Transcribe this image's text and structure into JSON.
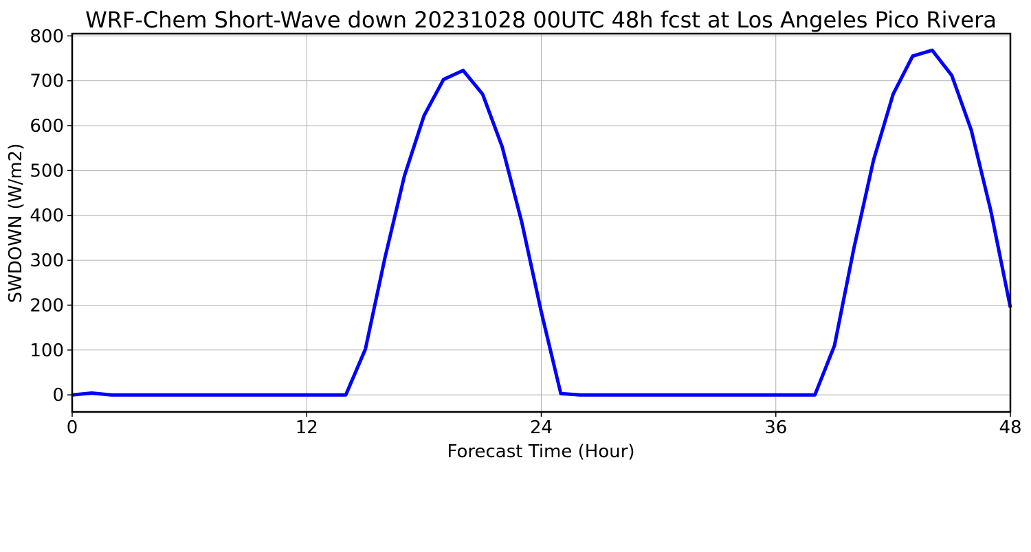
{
  "chart_data": {
    "type": "line",
    "title": "WRF-Chem Short-Wave down  20231028 00UTC 48h fcst at Los Angeles Pico Rivera",
    "xlabel": "Forecast Time (Hour)",
    "ylabel": "SWDOWN  (W/m2)",
    "xlim": [
      0,
      48
    ],
    "ylim": [
      -38,
      805
    ],
    "xticks": [
      0,
      12,
      24,
      36,
      48
    ],
    "yticks": [
      0,
      100,
      200,
      300,
      400,
      500,
      600,
      700,
      800
    ],
    "grid": true,
    "legend": "none",
    "series": [
      {
        "color": "#0000ff",
        "x": [
          0,
          1,
          2,
          3,
          4,
          5,
          6,
          7,
          8,
          9,
          10,
          11,
          12,
          13,
          14,
          15,
          16,
          17,
          18,
          19,
          20,
          21,
          22,
          23,
          24,
          25,
          26,
          27,
          28,
          29,
          30,
          31,
          32,
          33,
          34,
          35,
          36,
          37,
          38,
          39,
          40,
          41,
          42,
          43,
          44,
          45,
          46,
          47,
          48
        ],
        "y": [
          0,
          4,
          0,
          0,
          0,
          0,
          0,
          0,
          0,
          0,
          0,
          0,
          0,
          0,
          0,
          102,
          305,
          488,
          622,
          703,
          723,
          670,
          553,
          385,
          185,
          3,
          0,
          0,
          0,
          0,
          0,
          0,
          0,
          0,
          0,
          0,
          0,
          0,
          0,
          110,
          328,
          523,
          670,
          755,
          768,
          712,
          590,
          410,
          195
        ]
      }
    ]
  }
}
